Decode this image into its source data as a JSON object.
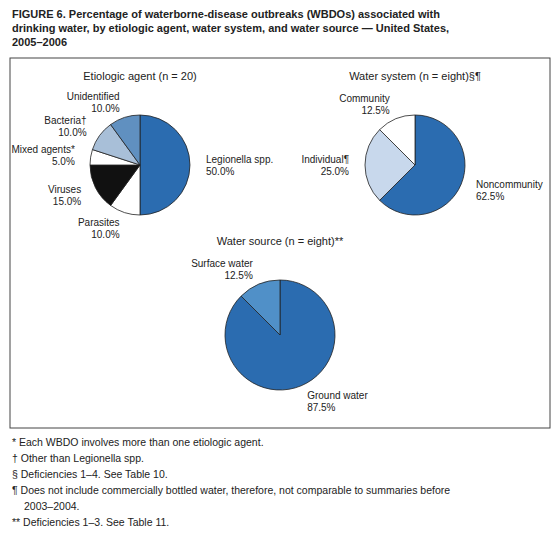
{
  "title": "FIGURE 6. Percentage of waterborne-disease outbreaks (WBDOs) associated with\ndrinking water, by etiologic agent, water system, and water source — United States,\n2005–2006",
  "chart_data": [
    {
      "type": "pie",
      "title": "Etiologic agent (n = 20)",
      "categories": [
        "Legionella spp.",
        "Parasites",
        "Viruses",
        "Mixed agents*",
        "Bacteria†",
        "Unidentified"
      ],
      "values": [
        50.0,
        10.0,
        15.0,
        5.0,
        10.0,
        10.0
      ],
      "value_labels": [
        "50.0%",
        "10.0%",
        "15.0%",
        "5.0%",
        "10.0%",
        "10.0%"
      ],
      "colors": [
        "#2b6cb0",
        "#ffffff",
        "#111111",
        "#ffffff",
        "#a8bfd8",
        "#6090c0"
      ],
      "data_labels": true
    },
    {
      "type": "pie",
      "title": "Water system (n = eight)§¶",
      "categories": [
        "Noncommunity",
        "Individual¶",
        "Community"
      ],
      "values": [
        62.5,
        25.0,
        12.5
      ],
      "value_labels": [
        "62.5%",
        "25.0%",
        "12.5%"
      ],
      "colors": [
        "#2b6cb0",
        "#c8d8ec",
        "#ffffff"
      ],
      "data_labels": true
    },
    {
      "type": "pie",
      "title": "Water source (n = eight)**",
      "categories": [
        "Ground water",
        "Surface water"
      ],
      "values": [
        87.5,
        12.5
      ],
      "value_labels": [
        "87.5%",
        "12.5%"
      ],
      "colors": [
        "#2b6cb0",
        "#5090c8"
      ],
      "data_labels": true
    }
  ],
  "annotations": [
    "* Each WBDO involves more than one etiologic agent.",
    "† Other than Legionella spp.",
    "§ Deficiencies 1–4. See Table 10.",
    "¶ Does not include commercially bottled water, therefore, not comparable to summaries before",
    "2003–2004.",
    "** Deficiencies 1–3. See Table 11."
  ]
}
